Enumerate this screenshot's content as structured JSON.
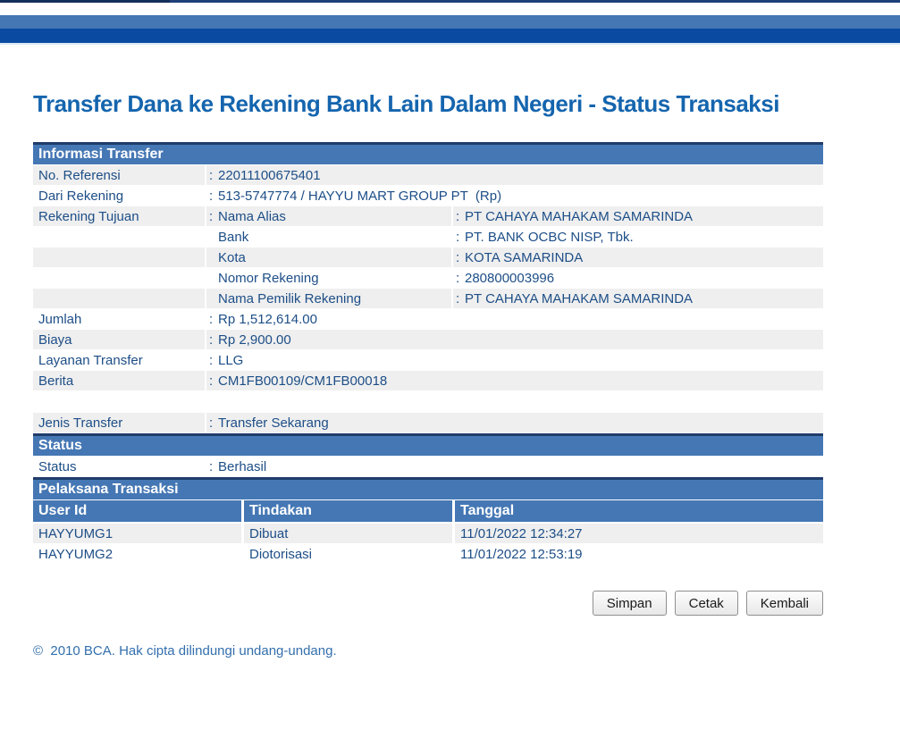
{
  "punct": {
    "colon": ":"
  },
  "page": {
    "title": "Transfer Dana ke Rekening Bank Lain Dalam Negeri - Status Transaksi",
    "footer": "©  2010 BCA. Hak cipta dilindungi undang-undang."
  },
  "colors": {
    "section_header_blue": "#4577b4",
    "section_border_navy": "#1f3c6a",
    "top_nav_dark_blue": "#0b4aa1",
    "text_navy": "#1d4e87",
    "title_blue": "#1565ae",
    "row_gray": "#efefef"
  },
  "info": {
    "heading": "Informasi Transfer",
    "rows": [
      {
        "label": "No. Referensi",
        "value": "22011100675401"
      },
      {
        "label": "Dari Rekening",
        "value": "513-5747774 / HAYYU MART GROUP PT  (Rp)"
      },
      {
        "label": "Rekening Tujuan",
        "sub": "Nama Alias",
        "value": "PT CAHAYA MAHAKAM SAMARINDA"
      },
      {
        "label": "",
        "sub": "Bank",
        "value": "PT. BANK OCBC NISP, Tbk."
      },
      {
        "label": "",
        "sub": "Kota",
        "value": "KOTA SAMARINDA"
      },
      {
        "label": "",
        "sub": "Nomor Rekening",
        "value": "280800003996"
      },
      {
        "label": "",
        "sub": "Nama Pemilik Rekening",
        "value": "PT CAHAYA MAHAKAM SAMARINDA"
      },
      {
        "label": "Jumlah",
        "value": "Rp 1,512,614.00"
      },
      {
        "label": "Biaya",
        "value": "Rp 2,900.00"
      },
      {
        "label": "Layanan Transfer",
        "value": "LLG"
      },
      {
        "label": "Berita",
        "value": "CM1FB00109/CM1FB00018"
      }
    ],
    "jenis_row": {
      "label": "Jenis Transfer",
      "value": "Transfer Sekarang"
    }
  },
  "status": {
    "heading": "Status",
    "row": {
      "label": "Status",
      "value": "Berhasil"
    }
  },
  "pelaksana": {
    "heading": "Pelaksana Transaksi",
    "columns": [
      "User Id",
      "Tindakan",
      "Tanggal"
    ],
    "rows": [
      {
        "user_id": "HAYYUMG1",
        "tindakan": "Dibuat",
        "tanggal": "11/01/2022 12:34:27"
      },
      {
        "user_id": "HAYYUMG2",
        "tindakan": "Diotorisasi",
        "tanggal": "11/01/2022 12:53:19"
      }
    ]
  },
  "buttons": {
    "simpan": "Simpan",
    "cetak": "Cetak",
    "kembali": "Kembali"
  }
}
